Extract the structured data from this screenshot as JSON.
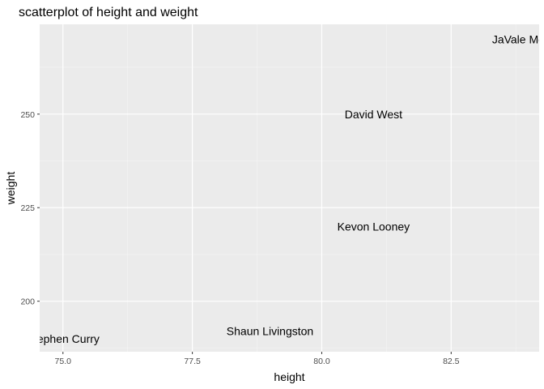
{
  "chart_data": {
    "type": "scatter",
    "title": "scatterplot of height and weight",
    "xlabel": "height",
    "ylabel": "weight",
    "xlim": [
      74.55,
      84.2
    ],
    "ylim": [
      186.5,
      274.0
    ],
    "x_ticks": [
      75.0,
      77.5,
      80.0,
      82.5
    ],
    "x_tick_labels": [
      "75.0",
      "77.5",
      "80.0",
      "82.5"
    ],
    "y_ticks": [
      200,
      225,
      250
    ],
    "y_tick_labels": [
      "200",
      "225",
      "250"
    ],
    "x_minor": [
      76.25,
      78.75,
      81.25,
      83.75
    ],
    "y_minor": [
      187.5,
      212.5,
      237.5,
      262.5
    ],
    "grid": true,
    "points": [
      {
        "label": "JaVale McGee",
        "x": 84.0,
        "y": 270
      },
      {
        "label": "David West",
        "x": 81.0,
        "y": 250
      },
      {
        "label": "Kevon Looney",
        "x": 81.0,
        "y": 220
      },
      {
        "label": "Shaun Livingston",
        "x": 79.0,
        "y": 192
      },
      {
        "label": "Stephen Curry",
        "x": 75.0,
        "y": 190
      }
    ]
  },
  "colors": {
    "panel": "#ebebeb",
    "grid_major": "#ffffff",
    "grid_minor": "#f5f5f5",
    "tick": "#333333"
  }
}
